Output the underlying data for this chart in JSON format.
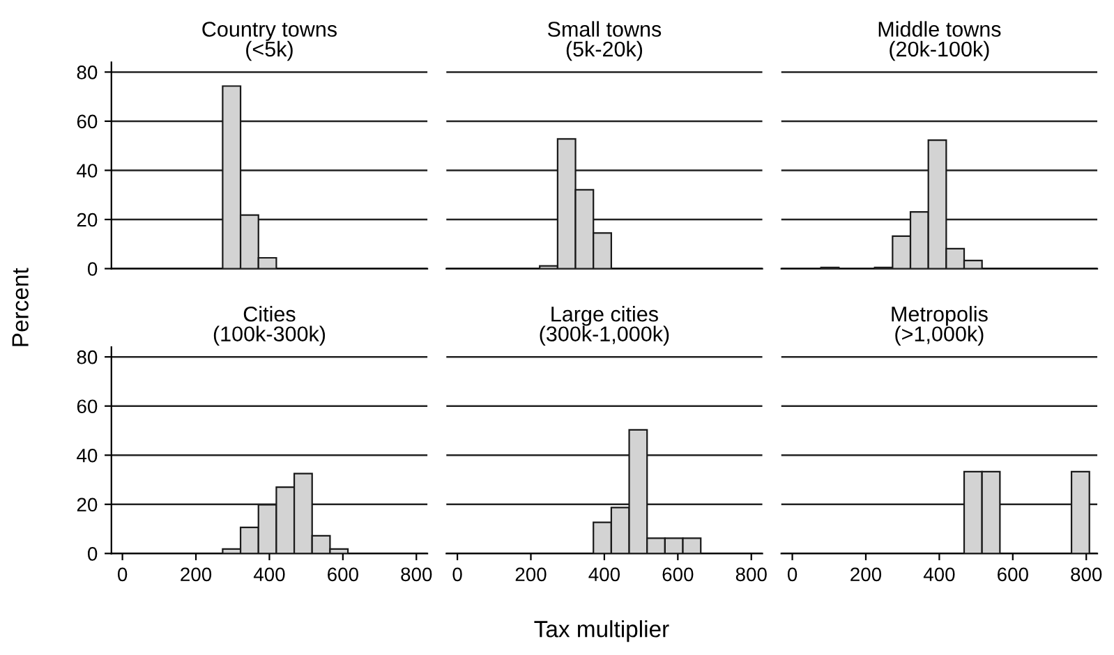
{
  "chart_data": [
    {
      "type": "histogram",
      "title": "Country towns\n(<5k)",
      "ylabel": "Percent",
      "bins": [
        78,
        126.7,
        175.4,
        224.1,
        272.8,
        321.5,
        370.2,
        418.9,
        467.6,
        516.3,
        565,
        613.7,
        662.4,
        711.1,
        759.8,
        808.5
      ],
      "values": [
        null,
        null,
        null,
        null,
        74.3,
        21.8,
        4.4,
        null,
        null,
        null,
        null,
        null,
        null,
        null,
        null
      ],
      "color": "#d3d3d3",
      "xlim": [
        -30,
        830
      ],
      "ylim": [
        0,
        84
      ],
      "xticks": [
        0,
        200,
        400,
        600,
        800
      ],
      "yticks": [
        0,
        20,
        40,
        60,
        80
      ],
      "grid": "y",
      "tick_labels": "y"
    },
    {
      "type": "histogram",
      "title": "Small towns\n(5k-20k)",
      "bins": [
        78,
        126.7,
        175.4,
        224.1,
        272.8,
        321.5,
        370.2,
        418.9,
        467.6,
        516.3,
        565,
        613.7,
        662.4,
        711.1,
        759.8,
        808.5
      ],
      "values": [
        null,
        null,
        null,
        1.1,
        52.8,
        32.1,
        14.5,
        null,
        null,
        null,
        null,
        null,
        null,
        null,
        null
      ],
      "color": "#d3d3d3",
      "xlim": [
        -30,
        830
      ],
      "xticks": [
        0,
        200,
        400,
        600,
        800
      ],
      "yticks": [
        0,
        20,
        40,
        60,
        80
      ],
      "grid": "y",
      "tick_labels": false
    },
    {
      "type": "histogram",
      "title": "Middle towns\n(20k-100k)",
      "bins": [
        78,
        126.7,
        175.4,
        224.1,
        272.8,
        321.5,
        370.2,
        418.9,
        467.6,
        516.3,
        565,
        613.7,
        662.4,
        711.1,
        759.8,
        808.5
      ],
      "values": [
        0.5,
        null,
        null,
        0.5,
        13.2,
        23.1,
        52.3,
        8.1,
        3.3,
        null,
        null,
        null,
        null,
        null,
        null
      ],
      "color": "#d3d3d3",
      "xlim": [
        -30,
        830
      ],
      "xticks": [
        0,
        200,
        400,
        600,
        800
      ],
      "yticks": [
        0,
        20,
        40,
        60,
        80
      ],
      "grid": "y",
      "tick_labels": false
    },
    {
      "type": "histogram",
      "title": "Cities\n(100k-300k)",
      "bins": [
        78,
        126.7,
        175.4,
        224.1,
        272.8,
        321.5,
        370.2,
        418.9,
        467.6,
        516.3,
        565,
        613.7,
        662.4,
        711.1,
        759.8,
        808.5
      ],
      "values": [
        null,
        null,
        null,
        null,
        1.8,
        10.6,
        19.8,
        27.0,
        32.5,
        7.2,
        1.8,
        null,
        null,
        null,
        null
      ],
      "color": "#d3d3d3",
      "xlim": [
        -30,
        830
      ],
      "ylim": [
        0,
        84
      ],
      "xticks": [
        0,
        200,
        400,
        600,
        800
      ],
      "yticks": [
        0,
        20,
        40,
        60,
        80
      ],
      "grid": "y"
    },
    {
      "type": "histogram",
      "title": "Large cities\n(300k-1,000k)",
      "xlabel": "Tax multiplier",
      "bins": [
        78,
        126.7,
        175.4,
        224.1,
        272.8,
        321.5,
        370.2,
        418.9,
        467.6,
        516.3,
        565,
        613.7,
        662.4,
        711.1,
        759.8,
        808.5
      ],
      "values": [
        null,
        null,
        null,
        null,
        null,
        null,
        12.7,
        18.7,
        50.3,
        6.2,
        6.2,
        6.2,
        null,
        null,
        null
      ],
      "color": "#d3d3d3",
      "xlim": [
        -30,
        830
      ],
      "xticks": [
        0,
        200,
        400,
        600,
        800
      ],
      "yticks": [
        0,
        20,
        40,
        60,
        80
      ],
      "grid": "y",
      "tick_labels": "x"
    },
    {
      "type": "histogram",
      "title": "Metropolis\n(>1,000k)",
      "bins": [
        78,
        126.7,
        175.4,
        224.1,
        272.8,
        321.5,
        370.2,
        418.9,
        467.6,
        516.3,
        565,
        613.7,
        662.4,
        711.1,
        759.8,
        808.5
      ],
      "values": [
        null,
        null,
        null,
        null,
        null,
        null,
        null,
        null,
        33.3,
        33.3,
        null,
        null,
        null,
        null,
        33.3
      ],
      "color": "#d3d3d3",
      "xlim": [
        -30,
        830
      ],
      "xticks": [
        0,
        200,
        400,
        600,
        800
      ],
      "yticks": [
        0,
        20,
        40,
        60,
        80
      ],
      "grid": "y",
      "tick_labels": "x"
    }
  ]
}
